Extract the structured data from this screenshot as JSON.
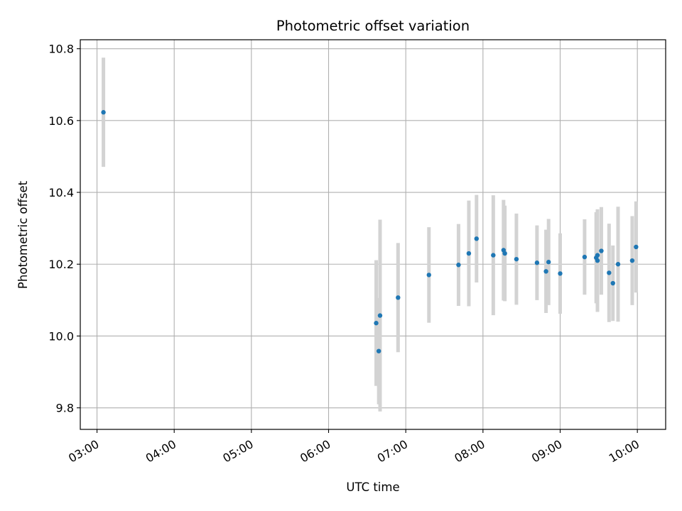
{
  "chart_data": {
    "type": "scatter",
    "title": "Photometric offset variation",
    "xlabel": "UTC time",
    "ylabel": "Photometric offset",
    "xlim": [
      "02:47",
      "10:22"
    ],
    "ylim": [
      9.74,
      10.825
    ],
    "x_ticks": [
      "03:00",
      "04:00",
      "05:00",
      "06:00",
      "07:00",
      "08:00",
      "09:00",
      "10:00"
    ],
    "y_ticks": [
      9.8,
      10.0,
      10.2,
      10.4,
      10.6,
      10.8
    ],
    "y_tick_labels": [
      "9.8",
      "10.0",
      "10.2",
      "10.4",
      "10.6",
      "10.8"
    ],
    "grid": true,
    "legend": "none",
    "colors": {
      "point": "#1f77b4",
      "errorbar": "#d3d3d3",
      "grid": "#b0b0b0"
    },
    "points": [
      {
        "time": "03:05",
        "y": 10.623,
        "err": 0.152
      },
      {
        "time": "06:37",
        "y": 10.036,
        "err": 0.175
      },
      {
        "time": "06:39",
        "y": 9.958,
        "err": 0.148
      },
      {
        "time": "06:40",
        "y": 10.057,
        "err": 0.267
      },
      {
        "time": "06:54",
        "y": 10.107,
        "err": 0.152
      },
      {
        "time": "07:18",
        "y": 10.17,
        "err": 0.133
      },
      {
        "time": "07:41",
        "y": 10.198,
        "err": 0.114
      },
      {
        "time": "07:49",
        "y": 10.23,
        "err": 0.147
      },
      {
        "time": "07:55",
        "y": 10.271,
        "err": 0.122
      },
      {
        "time": "08:08",
        "y": 10.225,
        "err": 0.167
      },
      {
        "time": "08:16",
        "y": 10.239,
        "err": 0.14
      },
      {
        "time": "08:17",
        "y": 10.23,
        "err": 0.133
      },
      {
        "time": "08:26",
        "y": 10.214,
        "err": 0.127
      },
      {
        "time": "08:42",
        "y": 10.204,
        "err": 0.104
      },
      {
        "time": "08:49",
        "y": 10.18,
        "err": 0.116
      },
      {
        "time": "08:51",
        "y": 10.206,
        "err": 0.12
      },
      {
        "time": "09:00",
        "y": 10.174,
        "err": 0.112
      },
      {
        "time": "09:19",
        "y": 10.22,
        "err": 0.105
      },
      {
        "time": "09:28",
        "y": 10.218,
        "err": 0.127
      },
      {
        "time": "09:29",
        "y": 10.21,
        "err": 0.143
      },
      {
        "time": "09:29",
        "y": 10.225,
        "err": 0.126
      },
      {
        "time": "09:32",
        "y": 10.237,
        "err": 0.122
      },
      {
        "time": "09:38",
        "y": 10.176,
        "err": 0.137
      },
      {
        "time": "09:41",
        "y": 10.147,
        "err": 0.105
      },
      {
        "time": "09:45",
        "y": 10.2,
        "err": 0.16
      },
      {
        "time": "09:56",
        "y": 10.21,
        "err": 0.124
      },
      {
        "time": "09:59",
        "y": 10.248,
        "err": 0.127
      }
    ]
  }
}
